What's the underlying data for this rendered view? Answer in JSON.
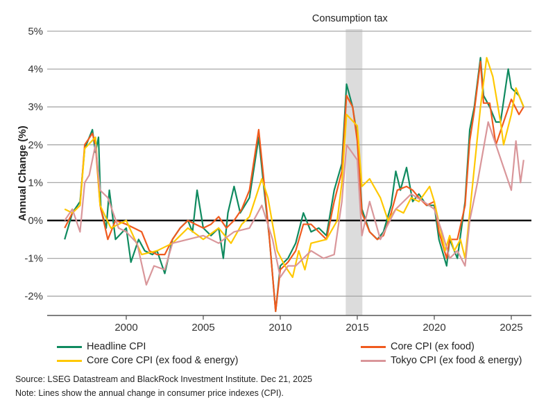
{
  "chart_data": {
    "type": "line",
    "annotation": "Consumption tax",
    "shaded_period": [
      2014.25,
      2015.33
    ],
    "ylabel": "Annual Change (%)",
    "xlabel": "",
    "xlim": [
      1996,
      2026.1
    ],
    "ylim": [
      -2.5,
      5
    ],
    "x_ticks": [
      2000,
      2005,
      2010,
      2015,
      2020,
      2025
    ],
    "y_ticks": [
      -2,
      -1,
      0,
      1,
      2,
      3,
      4,
      5
    ],
    "y_tick_labels": [
      "-2%",
      "-1%",
      "0%",
      "1%",
      "2%",
      "3%",
      "4%",
      "5%"
    ],
    "grid": "horizontal",
    "legend": "bottom",
    "series": [
      {
        "name": "Headline CPI",
        "color": "#0f8a5f",
        "points": [
          [
            1996.0,
            -0.5
          ],
          [
            1996.5,
            0.2
          ],
          [
            1997.0,
            0.5
          ],
          [
            1997.3,
            1.9
          ],
          [
            1997.8,
            2.4
          ],
          [
            1998.0,
            1.8
          ],
          [
            1998.2,
            2.2
          ],
          [
            1998.35,
            0.3
          ],
          [
            1998.7,
            -0.2
          ],
          [
            1998.9,
            0.8
          ],
          [
            1999.3,
            -0.5
          ],
          [
            2000.0,
            -0.2
          ],
          [
            2000.3,
            -1.1
          ],
          [
            2000.8,
            -0.5
          ],
          [
            2001.2,
            -0.8
          ],
          [
            2001.7,
            -0.9
          ],
          [
            2002.0,
            -0.8
          ],
          [
            2002.5,
            -1.4
          ],
          [
            2003.0,
            -0.5
          ],
          [
            2003.5,
            -0.2
          ],
          [
            2004.0,
            0.0
          ],
          [
            2004.3,
            -0.3
          ],
          [
            2004.6,
            0.8
          ],
          [
            2005.0,
            -0.2
          ],
          [
            2005.5,
            -0.4
          ],
          [
            2006.0,
            -0.2
          ],
          [
            2006.3,
            -1.0
          ],
          [
            2006.6,
            0.2
          ],
          [
            2007.0,
            0.9
          ],
          [
            2007.4,
            0.2
          ],
          [
            2008.0,
            0.6
          ],
          [
            2008.6,
            2.2
          ],
          [
            2008.9,
            1.0
          ],
          [
            2009.3,
            -0.5
          ],
          [
            2009.7,
            -2.4
          ],
          [
            2010.0,
            -1.2
          ],
          [
            2010.5,
            -1.0
          ],
          [
            2011.0,
            -0.6
          ],
          [
            2011.5,
            0.2
          ],
          [
            2012.0,
            -0.3
          ],
          [
            2012.5,
            -0.2
          ],
          [
            2013.0,
            -0.4
          ],
          [
            2013.5,
            0.8
          ],
          [
            2014.0,
            1.5
          ],
          [
            2014.3,
            3.6
          ],
          [
            2014.7,
            3.0
          ],
          [
            2015.0,
            2.2
          ],
          [
            2015.3,
            0.3
          ],
          [
            2015.8,
            -0.3
          ],
          [
            2016.3,
            -0.5
          ],
          [
            2016.7,
            -0.3
          ],
          [
            2017.2,
            0.4
          ],
          [
            2017.5,
            1.3
          ],
          [
            2017.8,
            0.8
          ],
          [
            2018.2,
            1.4
          ],
          [
            2018.6,
            0.5
          ],
          [
            2019.0,
            0.7
          ],
          [
            2019.5,
            0.4
          ],
          [
            2020.0,
            0.4
          ],
          [
            2020.3,
            -0.5
          ],
          [
            2020.8,
            -1.2
          ],
          [
            2021.0,
            -0.5
          ],
          [
            2021.5,
            -1.0
          ],
          [
            2022.0,
            0.5
          ],
          [
            2022.3,
            2.4
          ],
          [
            2022.6,
            3.0
          ],
          [
            2023.0,
            4.3
          ],
          [
            2023.2,
            3.3
          ],
          [
            2023.6,
            3.0
          ],
          [
            2024.0,
            2.6
          ],
          [
            2024.3,
            2.6
          ],
          [
            2024.8,
            4.0
          ],
          [
            2025.0,
            3.5
          ],
          [
            2025.5,
            3.3
          ],
          [
            2025.8,
            3.0
          ]
        ]
      },
      {
        "name": "Core CPI (ex food)",
        "color": "#f05a1e",
        "points": [
          [
            1996.0,
            -0.2
          ],
          [
            1996.5,
            0.2
          ],
          [
            1997.0,
            0.4
          ],
          [
            1997.3,
            2.0
          ],
          [
            1997.8,
            2.3
          ],
          [
            1998.0,
            2.0
          ],
          [
            1998.3,
            0.4
          ],
          [
            1998.8,
            -0.5
          ],
          [
            1999.3,
            0.0
          ],
          [
            2000.0,
            -0.1
          ],
          [
            2000.5,
            -0.2
          ],
          [
            2001.0,
            -0.3
          ],
          [
            2001.5,
            -0.8
          ],
          [
            2002.0,
            -0.9
          ],
          [
            2002.5,
            -0.9
          ],
          [
            2003.0,
            -0.5
          ],
          [
            2003.5,
            -0.2
          ],
          [
            2004.0,
            0.0
          ],
          [
            2004.5,
            -0.1
          ],
          [
            2005.0,
            -0.2
          ],
          [
            2005.5,
            -0.1
          ],
          [
            2006.0,
            0.1
          ],
          [
            2006.5,
            -0.2
          ],
          [
            2007.0,
            0.0
          ],
          [
            2007.5,
            0.3
          ],
          [
            2008.0,
            0.8
          ],
          [
            2008.6,
            2.4
          ],
          [
            2008.9,
            1.2
          ],
          [
            2009.3,
            -0.5
          ],
          [
            2009.7,
            -2.4
          ],
          [
            2010.0,
            -1.3
          ],
          [
            2010.5,
            -1.1
          ],
          [
            2011.0,
            -0.8
          ],
          [
            2011.5,
            -0.1
          ],
          [
            2012.0,
            -0.1
          ],
          [
            2012.5,
            -0.3
          ],
          [
            2013.0,
            -0.5
          ],
          [
            2013.5,
            0.5
          ],
          [
            2014.0,
            1.3
          ],
          [
            2014.3,
            3.3
          ],
          [
            2014.7,
            3.0
          ],
          [
            2015.0,
            2.1
          ],
          [
            2015.3,
            0.2
          ],
          [
            2015.8,
            -0.3
          ],
          [
            2016.3,
            -0.5
          ],
          [
            2016.7,
            -0.4
          ],
          [
            2017.2,
            0.2
          ],
          [
            2017.6,
            0.8
          ],
          [
            2018.2,
            0.9
          ],
          [
            2018.6,
            0.8
          ],
          [
            2019.0,
            0.6
          ],
          [
            2019.5,
            0.4
          ],
          [
            2020.0,
            0.5
          ],
          [
            2020.3,
            -0.3
          ],
          [
            2020.8,
            -1.0
          ],
          [
            2021.0,
            -0.5
          ],
          [
            2021.5,
            -0.5
          ],
          [
            2022.0,
            0.4
          ],
          [
            2022.3,
            2.1
          ],
          [
            2022.6,
            2.9
          ],
          [
            2023.0,
            4.2
          ],
          [
            2023.2,
            3.1
          ],
          [
            2023.6,
            3.1
          ],
          [
            2024.0,
            2.0
          ],
          [
            2024.5,
            2.6
          ],
          [
            2025.0,
            3.2
          ],
          [
            2025.5,
            2.8
          ],
          [
            2025.8,
            3.0
          ]
        ]
      },
      {
        "name": "Core Core CPI (ex food & energy)",
        "color": "#ffc800",
        "points": [
          [
            1996.0,
            0.3
          ],
          [
            1996.5,
            0.2
          ],
          [
            1997.0,
            0.4
          ],
          [
            1997.3,
            1.9
          ],
          [
            1998.0,
            2.2
          ],
          [
            1998.3,
            0.4
          ],
          [
            1999.0,
            -0.2
          ],
          [
            2000.0,
            0.0
          ],
          [
            2001.0,
            -0.9
          ],
          [
            2002.0,
            -0.8
          ],
          [
            2003.0,
            -0.6
          ],
          [
            2004.0,
            -0.2
          ],
          [
            2005.0,
            -0.5
          ],
          [
            2006.0,
            -0.2
          ],
          [
            2006.8,
            -0.6
          ],
          [
            2007.5,
            -0.1
          ],
          [
            2008.0,
            0.1
          ],
          [
            2008.8,
            1.1
          ],
          [
            2009.2,
            0.6
          ],
          [
            2009.8,
            -0.8
          ],
          [
            2010.3,
            -1.2
          ],
          [
            2010.8,
            -1.5
          ],
          [
            2011.2,
            -0.8
          ],
          [
            2011.6,
            -1.3
          ],
          [
            2012.0,
            -0.6
          ],
          [
            2013.0,
            -0.5
          ],
          [
            2013.7,
            0.0
          ],
          [
            2014.0,
            1.0
          ],
          [
            2014.3,
            2.8
          ],
          [
            2015.0,
            2.5
          ],
          [
            2015.3,
            0.9
          ],
          [
            2015.8,
            1.1
          ],
          [
            2016.5,
            0.6
          ],
          [
            2017.0,
            0.0
          ],
          [
            2017.5,
            0.3
          ],
          [
            2018.0,
            0.2
          ],
          [
            2018.5,
            0.6
          ],
          [
            2019.0,
            0.5
          ],
          [
            2019.7,
            0.9
          ],
          [
            2020.0,
            0.5
          ],
          [
            2020.7,
            -0.8
          ],
          [
            2021.0,
            -0.4
          ],
          [
            2021.3,
            -0.8
          ],
          [
            2021.7,
            -0.5
          ],
          [
            2022.0,
            -1.0
          ],
          [
            2022.5,
            1.0
          ],
          [
            2023.0,
            3.0
          ],
          [
            2023.4,
            4.3
          ],
          [
            2023.8,
            3.8
          ],
          [
            2024.3,
            2.6
          ],
          [
            2024.5,
            2.0
          ],
          [
            2025.0,
            2.8
          ],
          [
            2025.3,
            3.5
          ],
          [
            2025.8,
            3.0
          ]
        ]
      },
      {
        "name": "Tokyo CPI (ex food & energy)",
        "color": "#d9969a",
        "points": [
          [
            1996.0,
            0.0
          ],
          [
            1996.5,
            0.3
          ],
          [
            1997.0,
            -0.3
          ],
          [
            1997.3,
            1.0
          ],
          [
            1997.6,
            1.2
          ],
          [
            1998.0,
            2.0
          ],
          [
            1998.3,
            0.8
          ],
          [
            1998.8,
            0.6
          ],
          [
            1999.5,
            -0.2
          ],
          [
            2000.0,
            -0.3
          ],
          [
            2000.7,
            -0.6
          ],
          [
            2001.3,
            -1.7
          ],
          [
            2001.8,
            -1.2
          ],
          [
            2002.5,
            -1.3
          ],
          [
            2003.0,
            -0.6
          ],
          [
            2004.0,
            -0.5
          ],
          [
            2005.0,
            -0.4
          ],
          [
            2006.0,
            -0.6
          ],
          [
            2007.0,
            -0.3
          ],
          [
            2008.0,
            -0.2
          ],
          [
            2008.8,
            0.4
          ],
          [
            2009.5,
            -0.5
          ],
          [
            2010.0,
            -1.5
          ],
          [
            2010.5,
            -1.2
          ],
          [
            2011.0,
            -1.2
          ],
          [
            2012.0,
            -0.8
          ],
          [
            2012.8,
            -1.0
          ],
          [
            2013.5,
            -0.9
          ],
          [
            2014.0,
            0.5
          ],
          [
            2014.3,
            2.0
          ],
          [
            2015.0,
            1.6
          ],
          [
            2015.3,
            -0.4
          ],
          [
            2015.8,
            0.5
          ],
          [
            2016.5,
            -0.5
          ],
          [
            2017.5,
            0.3
          ],
          [
            2018.5,
            0.7
          ],
          [
            2019.3,
            0.5
          ],
          [
            2020.0,
            0.3
          ],
          [
            2020.5,
            -0.3
          ],
          [
            2021.0,
            -1.0
          ],
          [
            2021.5,
            -0.8
          ],
          [
            2022.0,
            -1.2
          ],
          [
            2022.3,
            0.0
          ],
          [
            2022.8,
            1.0
          ],
          [
            2023.5,
            2.6
          ],
          [
            2024.0,
            2.0
          ],
          [
            2024.5,
            1.4
          ],
          [
            2025.0,
            0.8
          ],
          [
            2025.3,
            2.1
          ],
          [
            2025.6,
            1.0
          ],
          [
            2025.8,
            1.6
          ]
        ]
      }
    ]
  },
  "footer": {
    "source": "Source: LSEG Datastream and BlackRock Investment Institute. Dec 21, 2025",
    "note": "Note: Lines show the annual change in consumer price indexes (CPI)."
  }
}
